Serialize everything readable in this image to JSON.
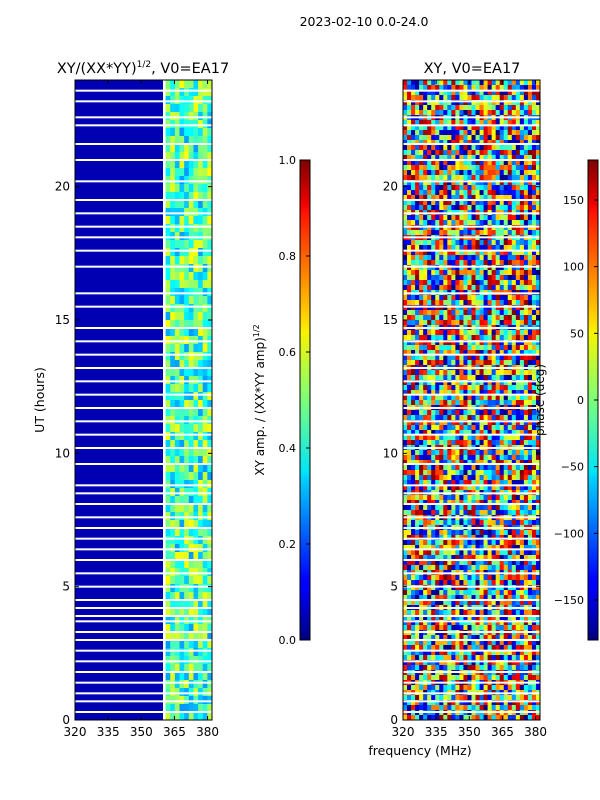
{
  "chart_data": [
    {
      "type": "heatmap",
      "suptitle": "2023-02-10 0.0-24.0",
      "title_text": "XY/(XX*YY)",
      "title_sup": "1/2",
      "title_tail": ", V0=EA17",
      "xlabel": "",
      "ylabel": "UT (hours)",
      "xlim": [
        320,
        382
      ],
      "ylim": [
        0,
        24
      ],
      "xticks": [
        320,
        335,
        350,
        365,
        380
      ],
      "yticks": [
        0,
        5,
        10,
        15,
        20
      ],
      "grid": false,
      "colorbar": {
        "label_text": "XY amp. / (XX*YY amp)",
        "label_sup": "1/2",
        "range": [
          0.0,
          1.0
        ],
        "ticks": [
          "0.0",
          "0.2",
          "0.4",
          "0.6",
          "0.8",
          "1.0"
        ],
        "tick_values": [
          0.0,
          0.2,
          0.4,
          0.6,
          0.8,
          1.0
        ],
        "colormap": "jet"
      },
      "blank_rows_hours": [
        0.3,
        0.7,
        1.0,
        1.4,
        1.8,
        2.2,
        2.6,
        3.0,
        3.3,
        3.7,
        3.9,
        4.2,
        4.5,
        5.0,
        5.5,
        6.0,
        6.4,
        6.8,
        7.2,
        7.6,
        8.1,
        8.5,
        8.8,
        9.6,
        10.2,
        10.7,
        11.2,
        11.7,
        12.2,
        12.7,
        13.2,
        13.7,
        14.2,
        14.7,
        15.5,
        16.0,
        17.0,
        17.6,
        18.1,
        18.5,
        19.0,
        19.5,
        20.2,
        21.0,
        21.6,
        22.3,
        22.6,
        23.2,
        23.6
      ],
      "band_low_mhz": [
        320,
        361
      ],
      "band_high_mhz": [
        361,
        382
      ],
      "low_band_level": 0.05,
      "high_band_level": 0.45
    },
    {
      "type": "heatmap",
      "title": "XY, V0=EA17",
      "xlabel": "frequency (MHz)",
      "ylabel": "",
      "xlim": [
        320,
        382
      ],
      "ylim": [
        0,
        24
      ],
      "xticks": [
        320,
        335,
        350,
        365,
        380
      ],
      "yticks": [
        0,
        5,
        10,
        15,
        20
      ],
      "grid": false,
      "colorbar": {
        "label": "phase (deg)",
        "range": [
          -180,
          180
        ],
        "ticks": [
          "−150",
          "−100",
          "−50",
          "0",
          "50",
          "100",
          "150"
        ],
        "tick_values": [
          -150,
          -100,
          -50,
          0,
          50,
          100,
          150
        ],
        "colormap": "jet"
      },
      "blank_rows_hours": [
        0.3,
        0.7,
        1.0,
        1.4,
        1.8,
        2.2,
        2.6,
        3.0,
        3.3,
        3.7,
        3.9,
        4.2,
        4.5,
        5.0,
        5.5,
        6.0,
        6.4,
        6.8,
        7.2,
        7.6,
        8.1,
        8.5,
        8.8,
        9.6,
        10.2,
        10.7,
        11.2,
        11.7,
        12.2,
        12.7,
        13.2,
        13.7,
        14.2,
        14.7,
        15.5,
        16.0,
        17.0,
        17.6,
        18.1,
        18.5,
        19.0,
        19.5,
        20.2,
        21.0,
        21.6,
        22.3,
        22.6,
        23.2,
        23.6
      ]
    }
  ]
}
